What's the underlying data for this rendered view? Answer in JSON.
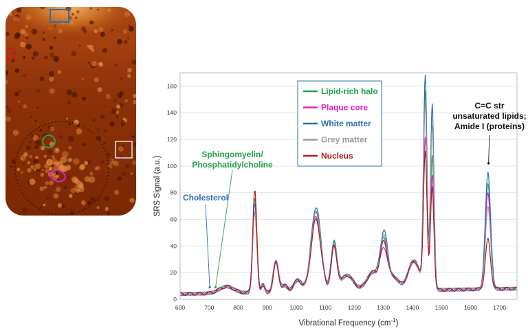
{
  "chart_data": {
    "type": "line",
    "xlabel": "Vibrational Frequency (cm-1)",
    "xlabel_main": "Vibrational Frequency (cm",
    "xlabel_sup": "-1",
    "xlabel_close": ")",
    "ylabel": "SRS Signal (a.u.)",
    "xlim": [
      600,
      1760
    ],
    "ylim": [
      0,
      170
    ],
    "xticks": [
      600,
      700,
      800,
      900,
      1000,
      1100,
      1200,
      1300,
      1400,
      1500,
      1600,
      1700
    ],
    "yticks": [
      0,
      20,
      40,
      60,
      80,
      100,
      120,
      140,
      160
    ],
    "grid": "horizontal",
    "legend_position": "top-center",
    "series": [
      {
        "name": "Lipid-rich halo",
        "color": "#1fa34a",
        "peaks": {
          "p1": 80,
          "p2": 31,
          "p3": 67,
          "p4": 44,
          "p5": 42,
          "p6": 155,
          "p7": 108,
          "p8": 86
        }
      },
      {
        "name": "Plaque core",
        "color": "#e020c8",
        "peaks": {
          "p1": 68,
          "p2": 30,
          "p3": 65,
          "p4": 40,
          "p5": 36,
          "p6": 120,
          "p7": 95,
          "p8": 80
        }
      },
      {
        "name": "White matter",
        "color": "#2a6fb0",
        "peaks": {
          "p1": 75,
          "p2": 33,
          "p3": 72,
          "p4": 45,
          "p5": 49,
          "p6": 165,
          "p7": 148,
          "p8": 97
        }
      },
      {
        "name": "Grey matter",
        "color": "#999999",
        "peaks": {
          "p1": 70,
          "p2": 32,
          "p3": 68,
          "p4": 42,
          "p5": 44,
          "p6": 145,
          "p7": 130,
          "p8": 70
        }
      },
      {
        "name": "Nucleus",
        "color": "#b01c1c",
        "peaks": {
          "p1": 85,
          "p2": 30,
          "p3": 62,
          "p4": 40,
          "p5": 40,
          "p6": 110,
          "p7": 85,
          "p8": 45
        }
      }
    ],
    "annotations": [
      {
        "id": "cholesterol",
        "lines": [
          "Cholesterol"
        ],
        "color": "#2a6fb0",
        "target_x": 702,
        "target_y": 9
      },
      {
        "id": "sphingomyelin",
        "lines": [
          "Sphingomyelin/",
          "Phosphatidylcholine"
        ],
        "color": "#1fa34a",
        "target_x": 722,
        "target_y": 9
      },
      {
        "id": "amide",
        "lines": [
          "C=C str",
          "unsaturated lipids;",
          "Amide I (proteins)"
        ],
        "color": "#111111",
        "target_x": 1662,
        "target_y": 102
      }
    ]
  },
  "micrograph": {
    "colors": {
      "dark": "#4a1400",
      "mid": "#a8400c",
      "light": "#e0873a"
    },
    "markers": [
      {
        "name": "white-matter-box",
        "color": "#2a6fb0"
      },
      {
        "name": "grey-matter-box",
        "color": "#dddddd"
      },
      {
        "name": "nucleus-circle",
        "color": "#d01818"
      },
      {
        "name": "lipid-halo-circle",
        "color": "#1fa34a"
      },
      {
        "name": "plaque-core-ellipse",
        "color": "#e020c8"
      }
    ]
  }
}
